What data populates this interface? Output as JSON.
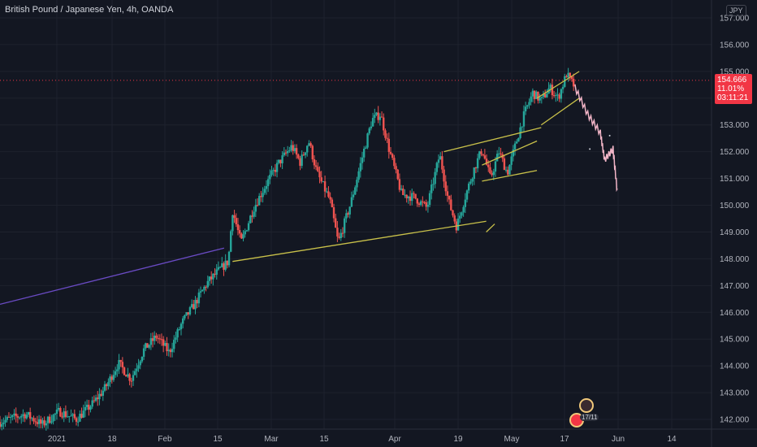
{
  "header": {
    "title": "British Pound / Japanese Yen, 4h, OANDA",
    "currency": "JPY"
  },
  "price_label": {
    "price": "154.666",
    "change": "11.01%",
    "countdown": "03:11:21"
  },
  "event_badge": "17/11",
  "colors": {
    "background": "#131722",
    "up": "#26a69a",
    "down": "#ef5350",
    "trendline": "#c9c14a",
    "purple_line": "#6a4bc4",
    "projection": "#f3b6c8",
    "price_badge": "#f23645"
  },
  "chart_data": {
    "type": "candlestick",
    "symbol": "British Pound / Japanese Yen",
    "interval": "4h",
    "source": "OANDA",
    "x_ticks": [
      "2021",
      "18",
      "Feb",
      "15",
      "Mar",
      "15",
      "Apr",
      "19",
      "May",
      "17",
      "Jun",
      "14"
    ],
    "y_ticks": [
      "142.000",
      "143.000",
      "144.000",
      "145.000",
      "146.000",
      "147.000",
      "148.000",
      "149.000",
      "150.000",
      "151.000",
      "152.000",
      "153.000",
      "154.000",
      "155.000",
      "156.000",
      "157.000"
    ],
    "ylim": [
      141.8,
      157.4
    ],
    "current_price": 154.666,
    "price_path": [
      [
        0,
        141.9
      ],
      [
        6,
        142.2
      ],
      [
        10,
        141.8
      ],
      [
        14,
        142.3
      ],
      [
        18,
        142.0
      ],
      [
        22,
        142.6
      ],
      [
        25,
        143.2
      ],
      [
        28,
        144.1
      ],
      [
        31,
        143.5
      ],
      [
        34,
        144.6
      ],
      [
        37,
        145.1
      ],
      [
        40,
        144.5
      ],
      [
        43,
        145.6
      ],
      [
        46,
        146.3
      ],
      [
        49,
        147.1
      ],
      [
        52,
        147.6
      ],
      [
        54,
        147.9
      ],
      [
        55,
        149.8
      ],
      [
        57,
        148.6
      ],
      [
        60,
        149.9
      ],
      [
        63,
        150.8
      ],
      [
        66,
        151.6
      ],
      [
        69,
        152.2
      ],
      [
        71,
        151.6
      ],
      [
        73,
        152.4
      ],
      [
        75,
        151.2
      ],
      [
        78,
        150.2
      ],
      [
        80,
        148.6
      ],
      [
        83,
        150.1
      ],
      [
        86,
        152.0
      ],
      [
        88,
        153.2
      ],
      [
        90,
        153.4
      ],
      [
        92,
        152.1
      ],
      [
        95,
        150.4
      ],
      [
        98,
        150.3
      ],
      [
        101,
        149.9
      ],
      [
        104,
        151.9
      ],
      [
        106,
        150.2
      ],
      [
        108,
        149.2
      ],
      [
        110,
        150.3
      ],
      [
        112,
        151.3
      ],
      [
        114,
        152.1
      ],
      [
        116,
        151.0
      ],
      [
        118,
        152.0
      ],
      [
        120,
        151.2
      ],
      [
        122,
        152.3
      ],
      [
        124,
        153.4
      ],
      [
        126,
        154.2
      ],
      [
        128,
        153.9
      ],
      [
        130,
        154.4
      ],
      [
        132,
        154.0
      ],
      [
        134,
        154.9
      ],
      [
        136,
        154.4
      ]
    ],
    "projection": [
      [
        136,
        154.4
      ],
      [
        139,
        153.4
      ],
      [
        142,
        152.7
      ],
      [
        143,
        151.7
      ],
      [
        145,
        152.1
      ],
      [
        146,
        150.5
      ]
    ],
    "trendlines": [
      {
        "name": "support",
        "points": [
          [
            55,
            147.9
          ],
          [
            115,
            149.4
          ]
        ]
      },
      {
        "name": "rising-wedge-lower",
        "points": [
          [
            115,
            149.0
          ],
          [
            117,
            149.3
          ]
        ]
      },
      {
        "name": "channel-top-1",
        "points": [
          [
            105,
            152.0
          ],
          [
            128,
            152.9
          ]
        ]
      },
      {
        "name": "flag-upper",
        "points": [
          [
            114,
            151.5
          ],
          [
            127,
            152.4
          ]
        ]
      },
      {
        "name": "flag-lower",
        "points": [
          [
            114,
            150.9
          ],
          [
            127,
            151.3
          ]
        ]
      },
      {
        "name": "channel-top-2",
        "points": [
          [
            127,
            154.0
          ],
          [
            137,
            155.0
          ]
        ]
      },
      {
        "name": "channel-bottom-2",
        "points": [
          [
            128,
            153.0
          ],
          [
            137,
            154.0
          ]
        ]
      },
      {
        "name": "purple-ray",
        "points": [
          [
            0,
            146.3
          ],
          [
            53,
            148.4
          ]
        ]
      }
    ],
    "grid": true
  }
}
